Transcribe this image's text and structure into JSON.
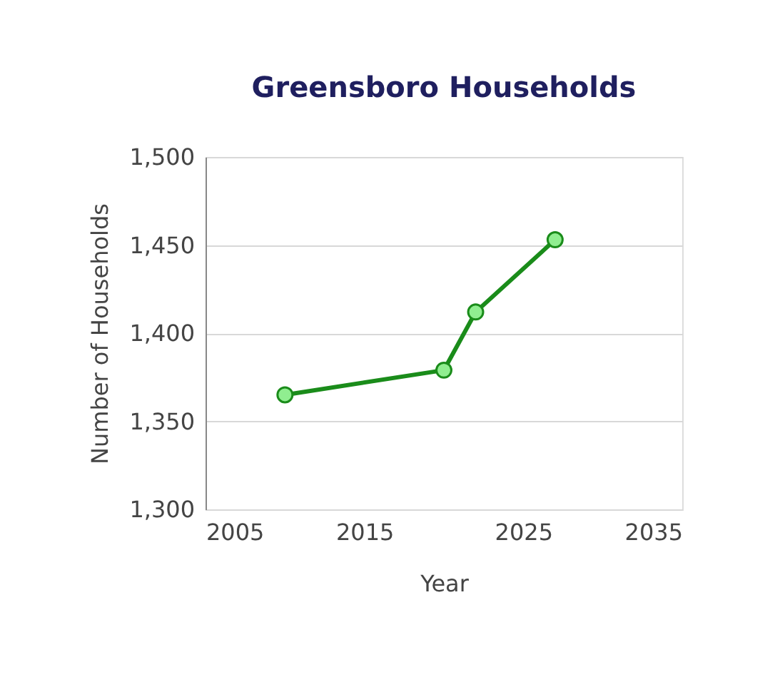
{
  "chart_data": {
    "type": "line",
    "title": "Greensboro Households",
    "xlabel": "Year",
    "ylabel": "Number of Households",
    "x": [
      2010,
      2020,
      2022,
      2027
    ],
    "series": [
      {
        "color": "#1a8c1a",
        "values": [
          1365,
          1379,
          1412,
          1453
        ]
      }
    ],
    "xlim": [
      2005,
      2035
    ],
    "xticks": [
      2005,
      2015,
      2025,
      2035
    ],
    "ylim": [
      1300,
      1500
    ],
    "yticks": [
      {
        "value": 1300,
        "label": "1,300"
      },
      {
        "value": 1350,
        "label": "1,350"
      },
      {
        "value": 1400,
        "label": "1,400"
      },
      {
        "value": 1450,
        "label": "1,450"
      },
      {
        "value": 1500,
        "label": "1,500"
      }
    ],
    "grid": "y",
    "marker": "circle",
    "line_style": "solid"
  }
}
